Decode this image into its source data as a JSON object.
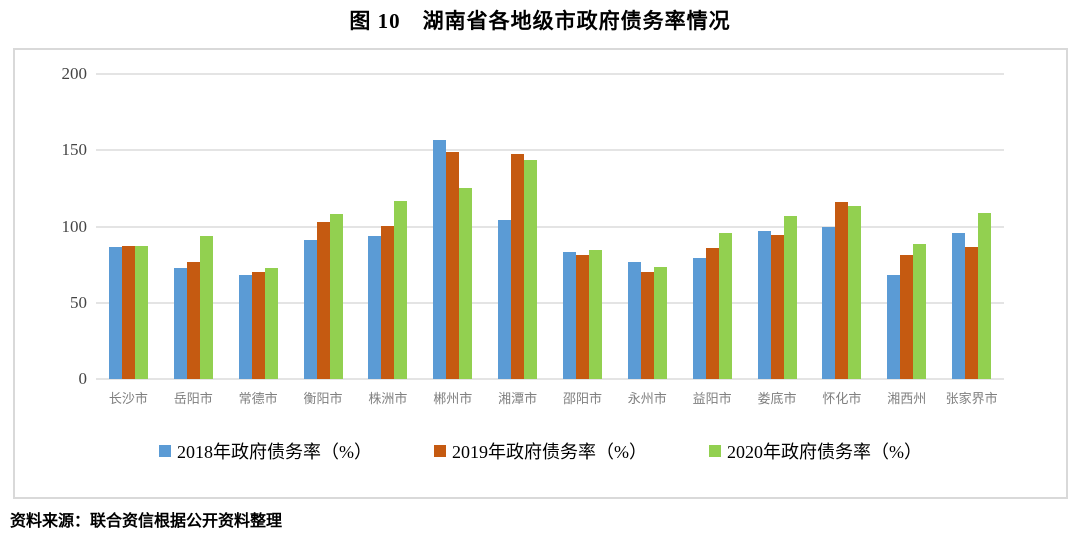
{
  "page": {
    "title": "图 10　湖南省各地级市政府债务率情况",
    "source_note": "资料来源：联合资信根据公开资料整理"
  },
  "chart_data": {
    "type": "bar",
    "title": "图 10　湖南省各地级市政府债务率情况",
    "categories": [
      "长沙市",
      "岳阳市",
      "常德市",
      "衡阳市",
      "株洲市",
      "郴州市",
      "湘潭市",
      "邵阳市",
      "永州市",
      "益阳市",
      "娄底市",
      "怀化市",
      "湘西州",
      "张家界市"
    ],
    "series": [
      {
        "name": "2018年政府债务率（%）",
        "color": "#5B9BD5",
        "values": [
          86.5,
          72.5,
          68,
          91,
          93.5,
          156.5,
          104,
          83.5,
          77,
          79.5,
          97,
          99.5,
          68,
          95.5
        ]
      },
      {
        "name": "2019年政府债务率（%）",
        "color": "#C55A11",
        "values": [
          87.5,
          77,
          70,
          103,
          100.5,
          149,
          147.5,
          81,
          70,
          86,
          94.5,
          116,
          81,
          86.5
        ]
      },
      {
        "name": "2020年政府债务率（%）",
        "color": "#92D050",
        "values": [
          87,
          94,
          73,
          108,
          116.5,
          125.5,
          143.5,
          84.5,
          73.5,
          95.5,
          107,
          113.5,
          88.5,
          109
        ]
      }
    ],
    "xlabel": "",
    "ylabel": "",
    "ylim": [
      0,
      200
    ],
    "yticks": [
      0,
      50,
      100,
      150,
      200
    ],
    "grid": true,
    "legend_position": "bottom",
    "frame_border_color": "#d9d9d9",
    "gridline_color": "#e4e4e4"
  }
}
